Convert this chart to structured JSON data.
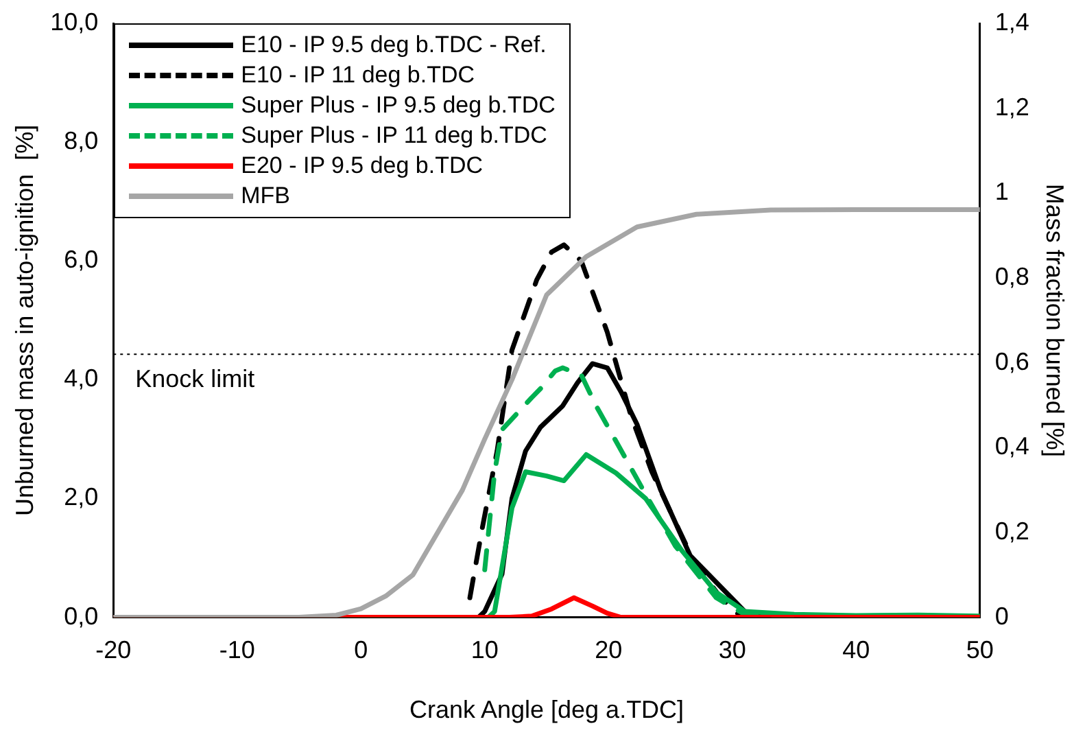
{
  "chart_data": {
    "type": "line",
    "xlabel": "Crank Angle [deg a.TDC]",
    "ylabel": "Unburned mass in auto-ignition  [%]",
    "y2label": "Mass fraction burned [%]",
    "xlim": [
      -20,
      50
    ],
    "xticks": [
      -20,
      -10,
      0,
      10,
      20,
      30,
      40,
      50
    ],
    "ylim": [
      0,
      10
    ],
    "yticks": [
      {
        "value": 0,
        "label": "0,0"
      },
      {
        "value": 2,
        "label": "2,0"
      },
      {
        "value": 4,
        "label": "4,0"
      },
      {
        "value": 6,
        "label": "6,0"
      },
      {
        "value": 8,
        "label": "8,0"
      },
      {
        "value": 10,
        "label": "10,0"
      }
    ],
    "y2lim": [
      0,
      1.4
    ],
    "y2ticks": [
      0,
      {
        "value": 0.2,
        "label": "0,2"
      },
      {
        "value": 0.4,
        "label": "0,4"
      },
      {
        "value": 0.6,
        "label": "0,6"
      },
      {
        "value": 0.8,
        "label": "0,8"
      },
      1,
      {
        "value": 1.2,
        "label": "1,2"
      },
      {
        "value": 1.4,
        "label": "1,4"
      }
    ],
    "grid": false,
    "legend": "top left",
    "marker": "none",
    "ref_lines": [
      {
        "axis": "y",
        "value": 4.43,
        "label": "Knock limit",
        "color": "#000000",
        "line_style": "dotted"
      }
    ],
    "series": [
      {
        "name": "E10 - IP 9.5 deg b.TDC - Ref.",
        "color": "#000000",
        "line_style": "solid",
        "x": [
          -20,
          9.5,
          10,
          11.4,
          12.2,
          13.3,
          14.5,
          16.3,
          17.5,
          18.7,
          19.9,
          21,
          22.3,
          24.2,
          26.6,
          29.5,
          31,
          33,
          50
        ],
        "values": [
          0,
          0,
          0.1,
          0.73,
          2.0,
          2.8,
          3.2,
          3.56,
          3.95,
          4.27,
          4.2,
          3.8,
          3.25,
          2.15,
          1.04,
          0.42,
          0.1,
          0.02,
          0
        ]
      },
      {
        "name": "E10 - IP 11 deg b.TDC",
        "color": "#000000",
        "line_style": "dashed",
        "x": [
          8.8,
          9.8,
          11,
          12.2,
          14.2,
          15.4,
          16.4,
          17.8,
          19.9,
          21.8,
          23.5,
          25.4,
          27,
          29,
          30.5
        ],
        "values": [
          0.33,
          1.5,
          2.8,
          4.5,
          5.68,
          6.15,
          6.27,
          6.0,
          4.8,
          3.4,
          2.45,
          1.6,
          0.9,
          0.35,
          0.05
        ]
      },
      {
        "name": "Super Plus - IP 9.5 deg b.TDC",
        "color": "#00b050",
        "line_style": "solid",
        "x": [
          -20,
          10.3,
          10.8,
          12.2,
          13.3,
          15,
          16.4,
          18.2,
          20.6,
          23,
          25.9,
          28.7,
          31,
          35,
          40,
          45,
          50
        ],
        "values": [
          0,
          0,
          0.1,
          1.84,
          2.45,
          2.38,
          2.3,
          2.74,
          2.43,
          2.0,
          1.13,
          0.42,
          0.1,
          0.05,
          0.03,
          0.04,
          0.02
        ]
      },
      {
        "name": "Super Plus - IP 11 deg b.TDC",
        "color": "#00b050",
        "line_style": "dashed",
        "x": [
          10,
          10.8,
          11.4,
          13.8,
          14.6,
          15.7,
          16.3,
          17.8,
          19,
          21.1,
          23,
          25.4,
          28.7,
          31,
          35
        ],
        "values": [
          0.8,
          2.45,
          3.16,
          3.7,
          3.87,
          4.15,
          4.2,
          4.08,
          3.56,
          2.78,
          2.07,
          1.2,
          0.33,
          0.05,
          0.02
        ]
      },
      {
        "name": "E20 - IP 9.5 deg b.TDC",
        "color": "#ff0000",
        "line_style": "solid",
        "x": [
          -20,
          12,
          13.8,
          15.4,
          17.2,
          18.7,
          19.9,
          21,
          50
        ],
        "values": [
          0,
          0,
          0.02,
          0.14,
          0.33,
          0.19,
          0.07,
          0,
          0
        ]
      },
      {
        "name": "MFB",
        "color": "#a6a6a6",
        "line_style": "solid",
        "axis": "y2",
        "x": [
          -20,
          -5,
          -2,
          0,
          2,
          4.2,
          7,
          8.2,
          10,
          12.2,
          15,
          18.2,
          22.3,
          27.1,
          33.1,
          40,
          50
        ],
        "values": [
          0,
          0,
          0.005,
          0.02,
          0.05,
          0.1,
          0.24,
          0.3,
          0.42,
          0.56,
          0.76,
          0.85,
          0.92,
          0.95,
          0.96,
          0.961,
          0.961
        ]
      }
    ]
  }
}
